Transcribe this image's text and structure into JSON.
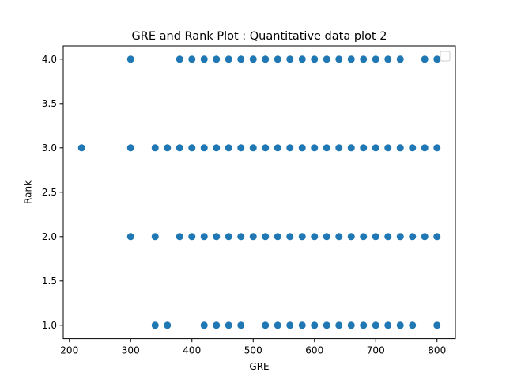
{
  "chart_data": {
    "type": "scatter",
    "title": "GRE and Rank Plot : Quantitative data plot 2",
    "xlabel": "GRE",
    "ylabel": "Rank",
    "xlim": [
      190,
      830
    ],
    "ylim": [
      0.85,
      4.15
    ],
    "x_ticks": [
      200,
      300,
      400,
      500,
      600,
      700,
      800
    ],
    "y_ticks": [
      1.0,
      1.5,
      2.0,
      2.5,
      3.0,
      3.5,
      4.0
    ],
    "x_tick_labels": [
      "200",
      "300",
      "400",
      "500",
      "600",
      "700",
      "800"
    ],
    "y_tick_labels": [
      "1.0",
      "1.5",
      "2.0",
      "2.5",
      "3.0",
      "3.5",
      "4.0"
    ],
    "grid": false,
    "legend": {
      "placement": "top-right",
      "entries": []
    },
    "marker_color": "#1f77b4",
    "series": [
      {
        "points": [
          {
            "x": 300,
            "y": 4
          },
          {
            "x": 380,
            "y": 4
          },
          {
            "x": 400,
            "y": 4
          },
          {
            "x": 420,
            "y": 4
          },
          {
            "x": 440,
            "y": 4
          },
          {
            "x": 460,
            "y": 4
          },
          {
            "x": 480,
            "y": 4
          },
          {
            "x": 500,
            "y": 4
          },
          {
            "x": 520,
            "y": 4
          },
          {
            "x": 540,
            "y": 4
          },
          {
            "x": 560,
            "y": 4
          },
          {
            "x": 580,
            "y": 4
          },
          {
            "x": 600,
            "y": 4
          },
          {
            "x": 620,
            "y": 4
          },
          {
            "x": 640,
            "y": 4
          },
          {
            "x": 660,
            "y": 4
          },
          {
            "x": 680,
            "y": 4
          },
          {
            "x": 700,
            "y": 4
          },
          {
            "x": 720,
            "y": 4
          },
          {
            "x": 740,
            "y": 4
          },
          {
            "x": 780,
            "y": 4
          },
          {
            "x": 800,
            "y": 4
          },
          {
            "x": 220,
            "y": 3
          },
          {
            "x": 300,
            "y": 3
          },
          {
            "x": 340,
            "y": 3
          },
          {
            "x": 360,
            "y": 3
          },
          {
            "x": 380,
            "y": 3
          },
          {
            "x": 400,
            "y": 3
          },
          {
            "x": 420,
            "y": 3
          },
          {
            "x": 440,
            "y": 3
          },
          {
            "x": 460,
            "y": 3
          },
          {
            "x": 480,
            "y": 3
          },
          {
            "x": 500,
            "y": 3
          },
          {
            "x": 520,
            "y": 3
          },
          {
            "x": 540,
            "y": 3
          },
          {
            "x": 560,
            "y": 3
          },
          {
            "x": 580,
            "y": 3
          },
          {
            "x": 600,
            "y": 3
          },
          {
            "x": 620,
            "y": 3
          },
          {
            "x": 640,
            "y": 3
          },
          {
            "x": 660,
            "y": 3
          },
          {
            "x": 680,
            "y": 3
          },
          {
            "x": 700,
            "y": 3
          },
          {
            "x": 720,
            "y": 3
          },
          {
            "x": 740,
            "y": 3
          },
          {
            "x": 760,
            "y": 3
          },
          {
            "x": 780,
            "y": 3
          },
          {
            "x": 800,
            "y": 3
          },
          {
            "x": 300,
            "y": 2
          },
          {
            "x": 340,
            "y": 2
          },
          {
            "x": 380,
            "y": 2
          },
          {
            "x": 400,
            "y": 2
          },
          {
            "x": 420,
            "y": 2
          },
          {
            "x": 440,
            "y": 2
          },
          {
            "x": 460,
            "y": 2
          },
          {
            "x": 480,
            "y": 2
          },
          {
            "x": 500,
            "y": 2
          },
          {
            "x": 520,
            "y": 2
          },
          {
            "x": 540,
            "y": 2
          },
          {
            "x": 560,
            "y": 2
          },
          {
            "x": 580,
            "y": 2
          },
          {
            "x": 600,
            "y": 2
          },
          {
            "x": 620,
            "y": 2
          },
          {
            "x": 640,
            "y": 2
          },
          {
            "x": 660,
            "y": 2
          },
          {
            "x": 680,
            "y": 2
          },
          {
            "x": 700,
            "y": 2
          },
          {
            "x": 720,
            "y": 2
          },
          {
            "x": 740,
            "y": 2
          },
          {
            "x": 760,
            "y": 2
          },
          {
            "x": 780,
            "y": 2
          },
          {
            "x": 800,
            "y": 2
          },
          {
            "x": 340,
            "y": 1
          },
          {
            "x": 360,
            "y": 1
          },
          {
            "x": 420,
            "y": 1
          },
          {
            "x": 440,
            "y": 1
          },
          {
            "x": 460,
            "y": 1
          },
          {
            "x": 480,
            "y": 1
          },
          {
            "x": 520,
            "y": 1
          },
          {
            "x": 540,
            "y": 1
          },
          {
            "x": 560,
            "y": 1
          },
          {
            "x": 580,
            "y": 1
          },
          {
            "x": 600,
            "y": 1
          },
          {
            "x": 620,
            "y": 1
          },
          {
            "x": 640,
            "y": 1
          },
          {
            "x": 660,
            "y": 1
          },
          {
            "x": 680,
            "y": 1
          },
          {
            "x": 700,
            "y": 1
          },
          {
            "x": 720,
            "y": 1
          },
          {
            "x": 740,
            "y": 1
          },
          {
            "x": 760,
            "y": 1
          },
          {
            "x": 800,
            "y": 1
          }
        ]
      }
    ]
  }
}
